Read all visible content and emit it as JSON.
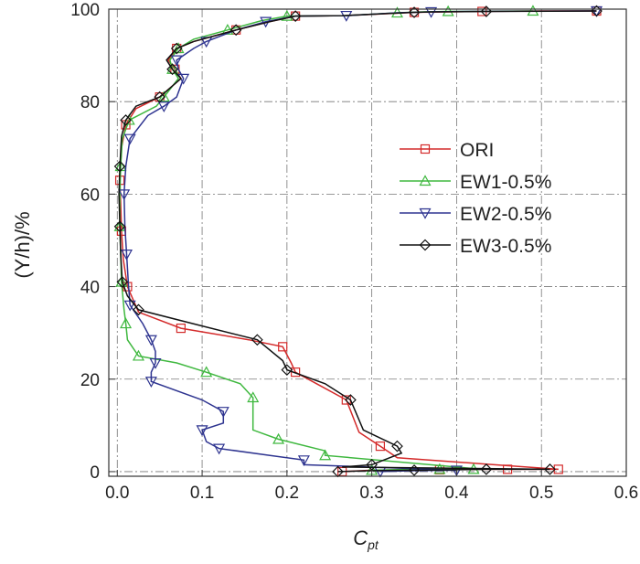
{
  "chart_data": {
    "type": "line",
    "xlabel": "C",
    "xlabel_sub": "pt",
    "ylabel": "(Y/h)/%",
    "xlim": [
      -0.01,
      0.6
    ],
    "ylim": [
      -1,
      100
    ],
    "xticks": [
      "0.0",
      "0.1",
      "0.2",
      "0.3",
      "0.4",
      "0.5",
      "0.6"
    ],
    "xtick_values": [
      0.0,
      0.1,
      0.2,
      0.3,
      0.4,
      0.5,
      0.6
    ],
    "yticks": [
      "0",
      "20",
      "40",
      "60",
      "80",
      "100"
    ],
    "ytick_values": [
      0,
      20,
      40,
      60,
      80,
      100
    ],
    "grid": true,
    "legend_position": "right-middle",
    "series": [
      {
        "name": "ORI",
        "color": "#d42a2a",
        "marker": "square",
        "points": [
          [
            0.265,
            0
          ],
          [
            0.3,
            0.3
          ],
          [
            0.38,
            0.4
          ],
          [
            0.43,
            0.5
          ],
          [
            0.46,
            0.5
          ],
          [
            0.5,
            0.5
          ],
          [
            0.52,
            0.5
          ],
          [
            0.33,
            3
          ],
          [
            0.31,
            5.5
          ],
          [
            0.285,
            8.5
          ],
          [
            0.27,
            15.5
          ],
          [
            0.235,
            19
          ],
          [
            0.21,
            21.5
          ],
          [
            0.205,
            23.5
          ],
          [
            0.195,
            27
          ],
          [
            0.155,
            28.5
          ],
          [
            0.075,
            31
          ],
          [
            0.025,
            34.5
          ],
          [
            0.012,
            40
          ],
          [
            0.007,
            46
          ],
          [
            0.005,
            52
          ],
          [
            0.004,
            58
          ],
          [
            0.003,
            63
          ],
          [
            0.005,
            70
          ],
          [
            0.01,
            75
          ],
          [
            0.022,
            78.5
          ],
          [
            0.05,
            81
          ],
          [
            0.075,
            85
          ],
          [
            0.068,
            87
          ],
          [
            0.06,
            89
          ],
          [
            0.07,
            91.5
          ],
          [
            0.09,
            93
          ],
          [
            0.14,
            95.5
          ],
          [
            0.18,
            97.3
          ],
          [
            0.21,
            98.5
          ],
          [
            0.27,
            98.6
          ],
          [
            0.35,
            99.3
          ],
          [
            0.39,
            99.4
          ],
          [
            0.43,
            99.5
          ],
          [
            0.5,
            99.6
          ],
          [
            0.565,
            99.6
          ]
        ]
      },
      {
        "name": "EW1-0.5%",
        "color": "#3fb83f",
        "marker": "triangle-up",
        "points": [
          [
            0.3,
            0.3
          ],
          [
            0.35,
            0.5
          ],
          [
            0.38,
            0.5
          ],
          [
            0.4,
            0.5
          ],
          [
            0.42,
            0.5
          ],
          [
            0.43,
            0.5
          ],
          [
            0.245,
            3.5
          ],
          [
            0.245,
            4.5
          ],
          [
            0.19,
            7
          ],
          [
            0.16,
            9
          ],
          [
            0.16,
            16
          ],
          [
            0.145,
            19
          ],
          [
            0.105,
            21.5
          ],
          [
            0.07,
            23.5
          ],
          [
            0.025,
            25
          ],
          [
            0.012,
            28.5
          ],
          [
            0.01,
            32
          ],
          [
            0.008,
            35
          ],
          [
            0.005,
            41
          ],
          [
            0.004,
            47
          ],
          [
            0.003,
            53
          ],
          [
            0.003,
            60
          ],
          [
            0.004,
            66
          ],
          [
            0.006,
            72
          ],
          [
            0.014,
            76
          ],
          [
            0.046,
            79
          ],
          [
            0.055,
            81
          ],
          [
            0.072,
            85
          ],
          [
            0.065,
            87
          ],
          [
            0.062,
            89
          ],
          [
            0.072,
            91.5
          ],
          [
            0.09,
            93.5
          ],
          [
            0.13,
            95.5
          ],
          [
            0.17,
            97.5
          ],
          [
            0.2,
            98.5
          ],
          [
            0.27,
            98.6
          ],
          [
            0.33,
            99.2
          ],
          [
            0.36,
            99.4
          ],
          [
            0.39,
            99.5
          ],
          [
            0.49,
            99.6
          ]
        ]
      },
      {
        "name": "EW2-0.5%",
        "color": "#2e3490",
        "marker": "triangle-down",
        "points": [
          [
            0.31,
            0
          ],
          [
            0.35,
            0.2
          ],
          [
            0.4,
            0.3
          ],
          [
            0.22,
            1.5
          ],
          [
            0.22,
            2.5
          ],
          [
            0.18,
            3.5
          ],
          [
            0.12,
            5
          ],
          [
            0.105,
            6.5
          ],
          [
            0.1,
            9
          ],
          [
            0.125,
            10.5
          ],
          [
            0.125,
            13
          ],
          [
            0.1,
            15.5
          ],
          [
            0.04,
            19.5
          ],
          [
            0.04,
            21.5
          ],
          [
            0.045,
            23.5
          ],
          [
            0.045,
            26
          ],
          [
            0.04,
            28.5
          ],
          [
            0.03,
            32
          ],
          [
            0.015,
            36
          ],
          [
            0.013,
            41
          ],
          [
            0.011,
            47
          ],
          [
            0.009,
            53
          ],
          [
            0.008,
            60
          ],
          [
            0.01,
            66
          ],
          [
            0.015,
            72
          ],
          [
            0.036,
            77
          ],
          [
            0.055,
            79
          ],
          [
            0.07,
            81
          ],
          [
            0.078,
            85
          ],
          [
            0.072,
            87
          ],
          [
            0.07,
            89
          ],
          [
            0.09,
            91.5
          ],
          [
            0.105,
            93
          ],
          [
            0.14,
            95.5
          ],
          [
            0.175,
            97.3
          ],
          [
            0.21,
            98.5
          ],
          [
            0.27,
            98.6
          ],
          [
            0.33,
            99.2
          ],
          [
            0.37,
            99.4
          ],
          [
            0.41,
            99.5
          ],
          [
            0.565,
            99.6
          ]
        ]
      },
      {
        "name": "EW3-0.5%",
        "color": "#111111",
        "marker": "diamond",
        "points": [
          [
            0.26,
            0
          ],
          [
            0.3,
            0.2
          ],
          [
            0.35,
            0.3
          ],
          [
            0.4,
            0.4
          ],
          [
            0.435,
            0.5
          ],
          [
            0.47,
            0.5
          ],
          [
            0.51,
            0.5
          ],
          [
            0.265,
            1
          ],
          [
            0.3,
            1.5
          ],
          [
            0.335,
            4
          ],
          [
            0.33,
            5.5
          ],
          [
            0.29,
            9
          ],
          [
            0.275,
            15.5
          ],
          [
            0.245,
            19
          ],
          [
            0.2,
            22
          ],
          [
            0.195,
            24
          ],
          [
            0.165,
            28.5
          ],
          [
            0.1,
            31.5
          ],
          [
            0.025,
            35
          ],
          [
            0.012,
            38
          ],
          [
            0.006,
            41
          ],
          [
            0.004,
            47
          ],
          [
            0.003,
            53
          ],
          [
            0.002,
            60
          ],
          [
            0.003,
            66
          ],
          [
            0.005,
            72.5
          ],
          [
            0.01,
            76
          ],
          [
            0.022,
            79
          ],
          [
            0.05,
            81
          ],
          [
            0.075,
            85
          ],
          [
            0.065,
            87
          ],
          [
            0.058,
            89
          ],
          [
            0.07,
            91.5
          ],
          [
            0.09,
            93
          ],
          [
            0.14,
            95.5
          ],
          [
            0.18,
            97.3
          ],
          [
            0.21,
            98.5
          ],
          [
            0.265,
            98.6
          ],
          [
            0.35,
            99.3
          ],
          [
            0.37,
            99.4
          ],
          [
            0.435,
            99.5
          ],
          [
            0.565,
            99.6
          ]
        ]
      }
    ]
  }
}
